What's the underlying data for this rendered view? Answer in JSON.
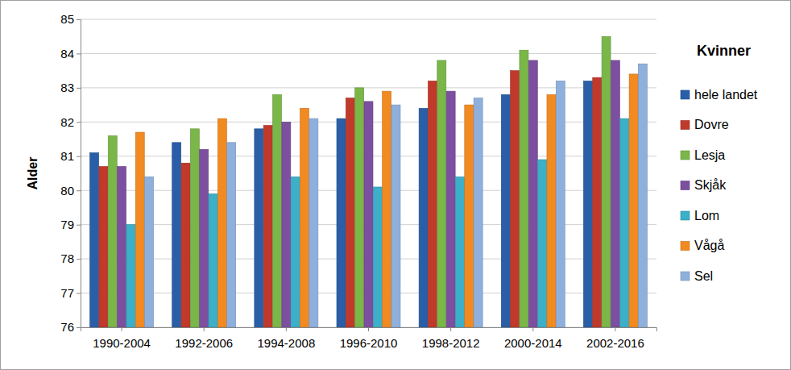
{
  "chart_data": {
    "type": "bar",
    "title": "Kvinner",
    "y_label": "Alder",
    "categories": [
      "1990-2004",
      "1992-2006",
      "1994-2008",
      "1996-2010",
      "1998-2012",
      "2000-2014",
      "2002-2016"
    ],
    "series": [
      {
        "name": "hele landet",
        "color": "#2a5fa8",
        "values": [
          81.1,
          81.4,
          81.8,
          82.1,
          82.4,
          82.8,
          83.2
        ]
      },
      {
        "name": "Dovre",
        "color": "#c0392b",
        "values": [
          80.7,
          80.8,
          81.9,
          82.7,
          83.2,
          83.5,
          83.3
        ]
      },
      {
        "name": "Lesja",
        "color": "#7ab648",
        "values": [
          81.6,
          81.8,
          82.8,
          83.0,
          83.8,
          84.1,
          84.5
        ]
      },
      {
        "name": "Skjåk",
        "color": "#7d4fa0",
        "values": [
          80.7,
          81.2,
          82.0,
          82.6,
          82.9,
          83.8,
          83.8
        ]
      },
      {
        "name": "Lom",
        "color": "#3bb0c8",
        "values": [
          79.0,
          79.9,
          80.4,
          80.1,
          80.4,
          80.9,
          82.1
        ]
      },
      {
        "name": "Vågå",
        "color": "#f28a22",
        "values": [
          81.7,
          82.1,
          82.4,
          82.9,
          82.5,
          82.8,
          83.4
        ]
      },
      {
        "name": "Sel",
        "color": "#8fb0dd",
        "values": [
          80.4,
          81.4,
          82.1,
          82.5,
          82.7,
          83.2,
          83.7
        ]
      }
    ],
    "ylim": [
      76,
      85
    ],
    "yticks": [
      76,
      77,
      78,
      79,
      80,
      81,
      82,
      83,
      84,
      85
    ],
    "grid": true,
    "legend": "right"
  }
}
